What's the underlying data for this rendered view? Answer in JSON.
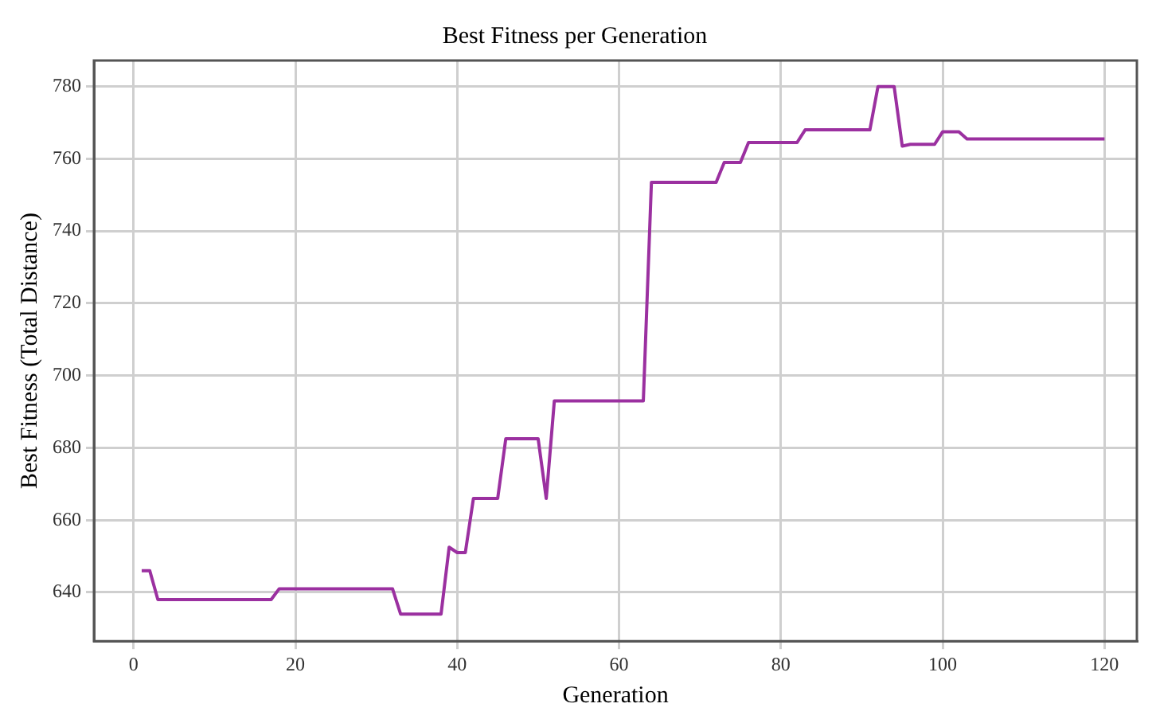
{
  "chart_data": {
    "type": "line",
    "title": "Best Fitness per Generation",
    "xlabel": "Generation",
    "ylabel": "Best Fitness (Total Distance)",
    "x": [
      1,
      2,
      3,
      4,
      5,
      6,
      7,
      8,
      9,
      10,
      11,
      12,
      13,
      14,
      15,
      16,
      17,
      18,
      19,
      20,
      21,
      22,
      23,
      24,
      25,
      26,
      27,
      28,
      29,
      30,
      31,
      32,
      33,
      34,
      35,
      36,
      37,
      38,
      39,
      40,
      41,
      42,
      43,
      44,
      45,
      46,
      47,
      48,
      49,
      50,
      51,
      52,
      53,
      54,
      55,
      56,
      57,
      58,
      59,
      60,
      61,
      62,
      63,
      64,
      65,
      66,
      67,
      68,
      69,
      70,
      71,
      72,
      73,
      74,
      75,
      76,
      77,
      78,
      79,
      80,
      81,
      82,
      83,
      84,
      85,
      86,
      87,
      88,
      89,
      90,
      91,
      92,
      93,
      94,
      95,
      96,
      97,
      98,
      99,
      100,
      101,
      102,
      103,
      104,
      105,
      106,
      107,
      108,
      109,
      110,
      111,
      112,
      113,
      114,
      115,
      116,
      117,
      118,
      119,
      120
    ],
    "series": [
      {
        "color": "#9b30a0",
        "values": [
          646,
          646,
          638,
          638,
          638,
          638,
          638,
          638,
          638,
          638,
          638,
          638,
          638,
          638,
          638,
          638,
          638,
          641,
          641,
          641,
          641,
          641,
          641,
          641,
          641,
          641,
          641,
          641,
          641,
          641,
          641,
          641,
          634,
          634,
          634,
          634,
          634,
          634,
          652.5,
          651,
          651,
          666,
          666,
          666,
          666,
          682.5,
          682.5,
          682.5,
          682.5,
          682.5,
          666,
          693,
          693,
          693,
          693,
          693,
          693,
          693,
          693,
          693,
          693,
          693,
          693,
          753.5,
          753.5,
          753.5,
          753.5,
          753.5,
          753.5,
          753.5,
          753.5,
          753.5,
          759,
          759,
          759,
          764.5,
          764.5,
          764.5,
          764.5,
          764.5,
          764.5,
          764.5,
          768,
          768,
          768,
          768,
          768,
          768,
          768,
          768,
          768,
          780,
          780,
          780,
          763.5,
          764,
          764,
          764,
          764,
          767.5,
          767.5,
          767.5,
          765.5,
          765.5,
          765.5,
          765.5,
          765.5,
          765.5,
          765.5,
          765.5,
          765.5,
          765.5,
          765.5,
          765.5,
          765.5,
          765.5,
          765.5,
          765.5,
          765.5,
          765.5
        ]
      }
    ],
    "xlim": [
      -4.9,
      124
    ],
    "xticks": [
      0,
      20,
      40,
      60,
      80,
      100,
      120
    ],
    "ylim": [
      626.5,
      787.2
    ],
    "yticks": [
      640,
      660,
      680,
      700,
      720,
      740,
      760,
      780
    ],
    "grid": true,
    "marker": "none",
    "line_style": "solid"
  }
}
